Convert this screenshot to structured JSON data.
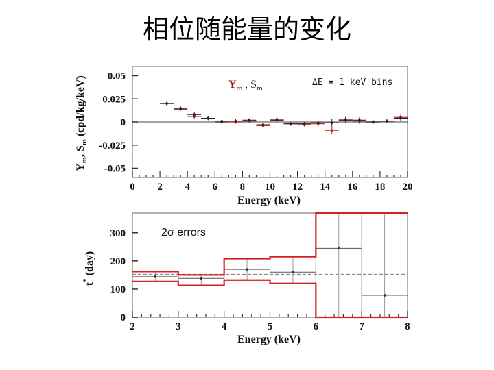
{
  "slide": {
    "title": "相位随能量的变化"
  },
  "chart_data": [
    {
      "type": "scatter",
      "xlabel": "Energy (keV)",
      "ylabel": "Y",
      "ylabel_sub": "m",
      "ylabel_mid": ", S",
      "ylabel_sub2": "m",
      "ylabel_rest": " (cpd/kg/keV)",
      "legend_y": "Y",
      "legend_y_sub": "m",
      "legend_sep": " , S",
      "legend_s_sub": "m",
      "annotation": "ΔE = 1 keV bins",
      "xlim": [
        0,
        20
      ],
      "ylim": [
        -0.06,
        0.06
      ],
      "xticks": [
        "0",
        "2",
        "4",
        "6",
        "8",
        "10",
        "12",
        "14",
        "16",
        "18",
        "20"
      ],
      "yticks": [
        "0.05",
        "0.025",
        "0",
        "-0.025",
        "-0.05"
      ],
      "ytick_values": [
        0.05,
        0.025,
        0,
        -0.025,
        -0.05
      ],
      "x": [
        2.5,
        3.5,
        4.5,
        5.5,
        6.5,
        7.5,
        8.5,
        9.5,
        10.5,
        11.5,
        12.5,
        13.5,
        14.5,
        15.5,
        16.5,
        17.5,
        18.5,
        19.5
      ],
      "series": [
        {
          "name": "Y",
          "color": "#c81e1e",
          "values": [
            0.02,
            0.015,
            0.006,
            0.004,
            0.001,
            0.0,
            0.001,
            -0.004,
            0.003,
            -0.002,
            -0.003,
            -0.002,
            -0.009,
            0.003,
            0.001,
            0.0,
            0.001,
            0.005
          ]
        },
        {
          "name": "S",
          "color": "#222222",
          "values": [
            0.02,
            0.014,
            0.008,
            0.004,
            0.0,
            0.001,
            0.002,
            -0.003,
            0.002,
            -0.002,
            -0.002,
            -0.001,
            -0.001,
            0.002,
            0.002,
            0.0,
            0.001,
            0.004
          ]
        }
      ],
      "error": [
        0.002,
        0.002,
        0.003,
        0.002,
        0.002,
        0.002,
        0.002,
        0.003,
        0.003,
        0.002,
        0.002,
        0.003,
        0.004,
        0.003,
        0.003,
        0.002,
        0.002,
        0.003
      ]
    },
    {
      "type": "bar",
      "xlabel": "Energy (keV)",
      "ylabel": "t",
      "ylabel_sup": "*",
      "ylabel_rest": " (day)",
      "annotation": "2σ errors",
      "xlim": [
        2,
        8
      ],
      "ylim": [
        0,
        370
      ],
      "xticks": [
        "2",
        "3",
        "4",
        "5",
        "6",
        "7",
        "8"
      ],
      "yticks": [
        "300",
        "200",
        "100",
        "0"
      ],
      "ytick_values": [
        300,
        200,
        100,
        0
      ],
      "reference_line": 152.5,
      "bins": [
        [
          2,
          3
        ],
        [
          3,
          4
        ],
        [
          4,
          5
        ],
        [
          5,
          6
        ],
        [
          6,
          7
        ],
        [
          7,
          8
        ]
      ],
      "values": [
        144,
        138,
        170,
        160,
        245,
        78
      ],
      "lower": [
        127,
        113,
        132,
        120,
        0,
        0
      ],
      "upper": [
        162,
        150,
        208,
        215,
        370,
        370
      ],
      "error_color": "#d42020"
    }
  ]
}
